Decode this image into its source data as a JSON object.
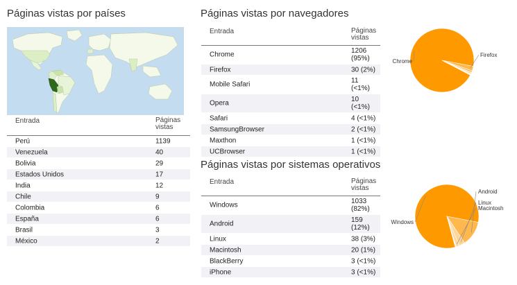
{
  "countries": {
    "title": "Páginas vistas por países",
    "col_entry": "Entrada",
    "col_views_1": "Páginas",
    "col_views_2": "vistas",
    "rows": [
      {
        "label": "Perú",
        "value": "1139"
      },
      {
        "label": "Venezuela",
        "value": "40"
      },
      {
        "label": "Bolivia",
        "value": "29"
      },
      {
        "label": "Estados Unidos",
        "value": "17"
      },
      {
        "label": "India",
        "value": "12"
      },
      {
        "label": "Chile",
        "value": "9"
      },
      {
        "label": "Colombia",
        "value": "6"
      },
      {
        "label": "España",
        "value": "6"
      },
      {
        "label": "Brasil",
        "value": "3"
      },
      {
        "label": "México",
        "value": "2"
      }
    ]
  },
  "browsers": {
    "title": "Páginas vistas por navegadores",
    "col_entry": "Entrada",
    "col_views_1": "Páginas",
    "col_views_2": "vistas",
    "rows": [
      {
        "label": "Chrome",
        "v1": "1206",
        "v2": "(95%)"
      },
      {
        "label": "Firefox",
        "v1": "30 (2%)",
        "v2": ""
      },
      {
        "label": "Mobile Safari",
        "v1": "11",
        "v2": "(<1%)"
      },
      {
        "label": "Opera",
        "v1": "10",
        "v2": "(<1%)"
      },
      {
        "label": "Safari",
        "v1": "4 (<1%)",
        "v2": ""
      },
      {
        "label": "SamsungBrowser",
        "v1": "2 (<1%)",
        "v2": ""
      },
      {
        "label": "Maxthon",
        "v1": "1 (<1%)",
        "v2": ""
      },
      {
        "label": "UCBrowser",
        "v1": "1 (<1%)",
        "v2": ""
      }
    ],
    "pie_labels": [
      "Chrome",
      "Firefox"
    ]
  },
  "os": {
    "title": "Páginas vistas por sistemas operativos",
    "col_entry": "Entrada",
    "col_views_1": "Páginas",
    "col_views_2": "vistas",
    "rows": [
      {
        "label": "Windows",
        "v1": "1033",
        "v2": "(82%)"
      },
      {
        "label": "Android",
        "v1": "159",
        "v2": "(12%)"
      },
      {
        "label": "Linux",
        "v1": "38 (3%)",
        "v2": ""
      },
      {
        "label": "Macintosh",
        "v1": "20 (1%)",
        "v2": ""
      },
      {
        "label": "BlackBerry",
        "v1": "3 (<1%)",
        "v2": ""
      },
      {
        "label": "iPhone",
        "v1": "3 (<1%)",
        "v2": ""
      }
    ],
    "pie_labels": [
      "Windows",
      "Android",
      "Linux",
      "Macintosh"
    ]
  },
  "colors": {
    "pie_main": "#ff9900",
    "pie_light": "#ffb84d",
    "pie_pale": "#ffd699",
    "map_ocean": "#c4dcf0",
    "map_land": "#f5f9e9",
    "map_low": "#dcefc4",
    "map_high": "#2e6a1e",
    "row_alt": "#f1f1f6"
  },
  "chart_data": [
    {
      "type": "pie",
      "title": "",
      "categories": [
        "Chrome",
        "Firefox",
        "Mobile Safari",
        "Opera",
        "Safari",
        "SamsungBrowser",
        "Maxthon",
        "UCBrowser"
      ],
      "values": [
        1206,
        30,
        11,
        10,
        4,
        2,
        1,
        1
      ],
      "legend": "callout labels"
    },
    {
      "type": "pie",
      "title": "",
      "categories": [
        "Windows",
        "Android",
        "Linux",
        "Macintosh",
        "BlackBerry",
        "iPhone"
      ],
      "values": [
        1033,
        159,
        38,
        20,
        3,
        3
      ],
      "legend": "callout labels"
    }
  ]
}
